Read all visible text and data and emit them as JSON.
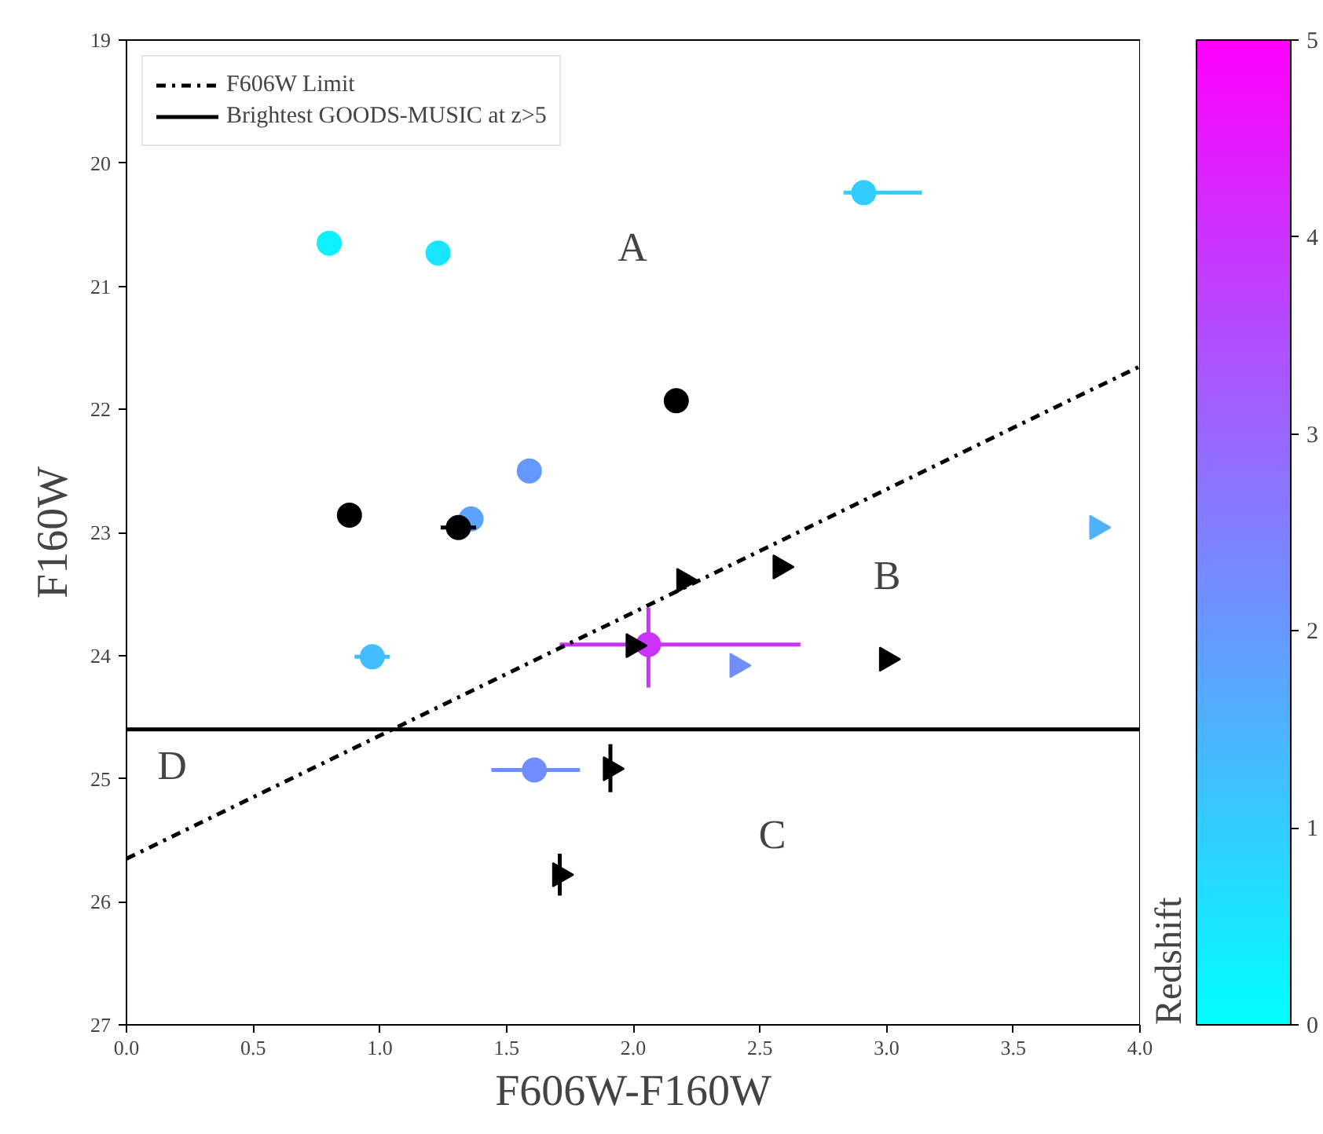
{
  "chart_data": {
    "type": "scatter",
    "xlabel": "F606W-F160W",
    "ylabel": "F160W",
    "clabel": "Redshift",
    "xlim": [
      0,
      4
    ],
    "xticks": [
      {
        "value": 0,
        "label": "0.0"
      },
      {
        "value": 0.5,
        "label": "0.5"
      },
      {
        "value": 1,
        "label": "1.0"
      },
      {
        "value": 1.5,
        "label": "1.5"
      },
      {
        "value": 2,
        "label": "2.0"
      },
      {
        "value": 2.5,
        "label": "2.5"
      },
      {
        "value": 3,
        "label": "3.0"
      },
      {
        "value": 3.5,
        "label": "3.5"
      },
      {
        "value": 4,
        "label": "4.0"
      }
    ],
    "ylim": [
      27,
      19
    ],
    "yticks": [
      19,
      20,
      21,
      22,
      23,
      24,
      25,
      26,
      27
    ],
    "clim": [
      0,
      5
    ],
    "cticks": [
      0,
      1,
      2,
      3,
      4,
      5
    ],
    "grid": false,
    "legend": "top left",
    "series": [
      {
        "marker": "circle",
        "x": [
          0.8,
          1.23,
          2.91,
          1.59,
          1.36,
          0.97,
          2.06,
          1.61
        ],
        "values": [
          20.65,
          20.73,
          20.24,
          22.5,
          22.89,
          24.01,
          23.91,
          24.93
        ],
        "colors": [
          "#0ff0ff",
          "#1ae5ff",
          "#33ccff",
          "#6699ff",
          "#5ca3ff",
          "#42bdff",
          "#cc33ff",
          "#708fff"
        ],
        "xerrors": [
          null,
          null,
          [
            2.83,
            3.14
          ],
          null,
          null,
          0.07,
          [
            1.71,
            2.66
          ],
          [
            1.44,
            1.79
          ]
        ],
        "errors": [
          null,
          null,
          null,
          null,
          null,
          null,
          [
            23.61,
            24.26
          ],
          null
        ]
      },
      {
        "marker": "triangle",
        "x": [
          3.83,
          2.41
        ],
        "values": [
          22.96,
          24.08
        ],
        "colors": [
          "#4db2ff",
          "#708fff"
        ]
      },
      {
        "marker": "circle",
        "color": "#000000",
        "x": [
          0.88,
          1.31,
          2.17
        ],
        "values": [
          22.86,
          22.96,
          21.93
        ],
        "xerrors": [
          null,
          0.07,
          null
        ]
      },
      {
        "marker": "triangle",
        "color": "#000000",
        "x": [
          2.2,
          2.58,
          2.0,
          3.0,
          1.91,
          1.71
        ],
        "values": [
          23.39,
          23.28,
          23.92,
          24.03,
          24.92,
          25.78
        ],
        "errors": [
          null,
          null,
          null,
          null,
          [
            24.72,
            25.11
          ],
          [
            25.61,
            25.95
          ]
        ]
      },
      {
        "type": "line",
        "name": "F606W Limit",
        "color": "#000000",
        "line_style": "dashdot",
        "x": [
          0,
          4
        ],
        "values": [
          25.65,
          21.65
        ]
      },
      {
        "type": "line",
        "name": "Brightest GOODS-MUSIC at z>5",
        "color": "#000000",
        "line_style": "solid",
        "x": [
          0,
          4
        ],
        "values": [
          24.6,
          24.6
        ]
      }
    ],
    "annotations": [
      "A",
      "B",
      "C",
      "D"
    ]
  }
}
